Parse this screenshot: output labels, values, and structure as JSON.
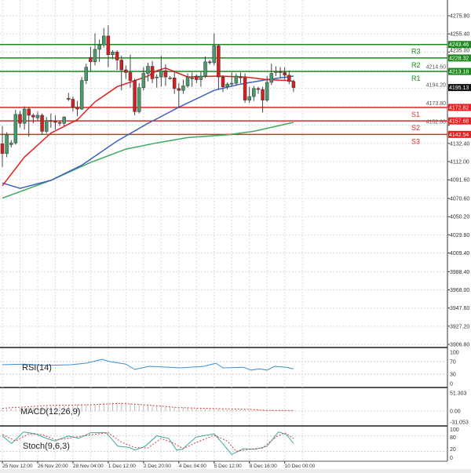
{
  "chart_data": {
    "type": "candlestick",
    "main": {
      "yticks": [
        4275.8,
        4255.4,
        4235.0,
        4132.4,
        4112.0,
        4091.6,
        4070.6,
        4050.2,
        4029.8,
        4009.4,
        3988.4,
        3968.0,
        3947.6,
        3927.2,
        3906.8
      ],
      "ytick_labels_hidden_under_boxes": [
        4214.6,
        4194.2,
        4173.8,
        4152.8
      ],
      "ylim": [
        3906.8,
        4292
      ],
      "current_price": "4195.13",
      "candles_ohlc": [
        [
          4132,
          4152,
          4106,
          4121
        ],
        [
          4121,
          4145,
          4117,
          4142
        ],
        [
          4131,
          4136,
          4128,
          4133
        ],
        [
          4133,
          4170,
          4131,
          4165
        ],
        [
          4165,
          4169,
          4150,
          4155
        ],
        [
          4155,
          4174,
          4148,
          4171
        ],
        [
          4171,
          4173,
          4140,
          4164
        ],
        [
          4164,
          4166,
          4155,
          4162
        ],
        [
          4161,
          4168,
          4158,
          4164
        ],
        [
          4164,
          4166,
          4142,
          4146
        ],
        [
          4146,
          4162,
          4144,
          4158
        ],
        [
          4158,
          4166,
          4150,
          4157
        ],
        [
          4157,
          4164,
          4148,
          4156
        ],
        [
          4156,
          4158,
          4152,
          4155
        ],
        [
          4155,
          4163,
          4152,
          4162
        ],
        [
          4183,
          4189,
          4180,
          4182
        ],
        [
          4182,
          4185,
          4168,
          4173
        ],
        [
          4173,
          4180,
          4163,
          4171
        ],
        [
          4171,
          4207,
          4170,
          4203
        ],
        [
          4203,
          4222,
          4199,
          4218
        ],
        [
          4229,
          4241,
          4213,
          4224
        ],
        [
          4224,
          4256,
          4220,
          4238
        ],
        [
          4238,
          4249,
          4224,
          4243
        ],
        [
          4243,
          4262,
          4240,
          4253
        ],
        [
          4253,
          4265,
          4218,
          4232
        ],
        [
          4232,
          4237,
          4227,
          4235
        ],
        [
          4235,
          4237,
          4215,
          4226
        ],
        [
          4226,
          4231,
          4192,
          4215
        ],
        [
          4215,
          4220,
          4205,
          4212
        ],
        [
          4212,
          4232,
          4195,
          4203
        ],
        [
          4203,
          4205,
          4164,
          4168
        ],
        [
          4168,
          4200,
          4166,
          4195
        ],
        [
          4195,
          4218,
          4192,
          4211
        ],
        [
          4211,
          4223,
          4202,
          4219
        ],
        [
          4219,
          4225,
          4200,
          4205
        ],
        [
          4206,
          4210,
          4195,
          4207
        ],
        [
          4207,
          4231,
          4196,
          4214
        ],
        [
          4214,
          4221,
          4197,
          4207
        ],
        [
          4206,
          4208,
          4204,
          4206
        ],
        [
          4206,
          4214,
          4188,
          4194
        ],
        [
          4194,
          4200,
          4172,
          4192
        ],
        [
          4192,
          4204,
          4188,
          4197
        ],
        [
          4197,
          4211,
          4195,
          4207
        ],
        [
          4205,
          4212,
          4196,
          4206
        ],
        [
          4208,
          4210,
          4200,
          4204
        ],
        [
          4204,
          4213,
          4196,
          4208
        ],
        [
          4208,
          4230,
          4206,
          4224
        ],
        [
          4224,
          4226,
          4221,
          4223
        ],
        [
          4223,
          4256,
          4220,
          4242
        ],
        [
          4242,
          4244,
          4193,
          4207
        ],
        [
          4207,
          4209,
          4190,
          4196
        ],
        [
          4196,
          4201,
          4193,
          4199
        ],
        [
          4199,
          4212,
          4196,
          4200
        ],
        [
          4200,
          4211,
          4197,
          4208
        ],
        [
          4207,
          4212,
          4200,
          4206
        ],
        [
          4206,
          4211,
          4178,
          4181
        ],
        [
          4181,
          4196,
          4178,
          4185
        ],
        [
          4185,
          4197,
          4180,
          4194
        ],
        [
          4194,
          4196,
          4188,
          4193
        ],
        [
          4193,
          4196,
          4167,
          4181
        ],
        [
          4181,
          4208,
          4179,
          4201
        ],
        [
          4201,
          4222,
          4198,
          4211
        ],
        [
          4212,
          4219,
          4208,
          4213
        ],
        [
          4213,
          4218,
          4206,
          4212
        ],
        [
          4212,
          4218,
          4204,
          4209
        ],
        [
          4209,
          4214,
          4199,
          4202
        ],
        [
          4202,
          4204,
          4190,
          4195.13
        ]
      ],
      "moving_averages": [
        {
          "color": "#e02020",
          "points": [
            [
              0,
              4085
            ],
            [
              5,
              4117
            ],
            [
              11,
              4144
            ],
            [
              17,
              4159
            ],
            [
              21,
              4179
            ],
            [
              26,
              4196
            ],
            [
              33,
              4208
            ],
            [
              35,
              4214
            ],
            [
              37,
              4217
            ],
            [
              42,
              4207
            ],
            [
              49,
              4208
            ],
            [
              55,
              4207
            ],
            [
              60,
              4204
            ],
            [
              65,
              4203
            ],
            [
              66,
              4202
            ]
          ]
        },
        {
          "color": "#4060c8",
          "points": [
            [
              0,
              4088
            ],
            [
              4,
              4082
            ],
            [
              11,
              4091
            ],
            [
              18,
              4108
            ],
            [
              26,
              4135
            ],
            [
              33,
              4155
            ],
            [
              35,
              4160
            ],
            [
              40,
              4173
            ],
            [
              48,
              4192
            ],
            [
              54,
              4199
            ],
            [
              60,
              4204
            ],
            [
              66,
              4208
            ]
          ]
        },
        {
          "color": "#40a860",
          "points": [
            [
              0,
              4071
            ],
            [
              11,
              4091
            ],
            [
              20,
              4111
            ],
            [
              28,
              4126
            ],
            [
              35,
              4133
            ],
            [
              42,
              4139
            ],
            [
              51,
              4142
            ],
            [
              57,
              4146
            ],
            [
              66,
              4156
            ]
          ]
        }
      ],
      "pivots": [
        {
          "name": "R3",
          "value": "4243.46",
          "color": "#1e8a1e"
        },
        {
          "name": "R2",
          "value": "4228.32",
          "color": "#1e8a1e"
        },
        {
          "name": "R1",
          "value": "4213.18",
          "color": "#1e8a1e"
        },
        {
          "name": "S1",
          "value": "4172.82",
          "color": "#e02828"
        },
        {
          "name": "S2",
          "value": "4157.68",
          "color": "#e02828"
        },
        {
          "name": "S3",
          "value": "4142.54",
          "color": "#e02828"
        }
      ],
      "up_color": "#4a9a6a",
      "down_color": "#d02020"
    },
    "rsi": {
      "label": "RSI(14)",
      "yticks": [
        "100",
        "70",
        "30",
        "0"
      ],
      "ylim": [
        0,
        100
      ],
      "color": "#3b8fd0",
      "points": [
        [
          0,
          60
        ],
        [
          4.8,
          62
        ],
        [
          10,
          58
        ],
        [
          15.5,
          60
        ],
        [
          19,
          65
        ],
        [
          22.6,
          77
        ],
        [
          24.4,
          70
        ],
        [
          28,
          62
        ],
        [
          30,
          45
        ],
        [
          33.3,
          55
        ],
        [
          40.4,
          50
        ],
        [
          45.7,
          55
        ],
        [
          48.4,
          65
        ],
        [
          50,
          50
        ],
        [
          54.6,
          52
        ],
        [
          56.4,
          43
        ],
        [
          58.2,
          47
        ],
        [
          60,
          43
        ],
        [
          61.7,
          55
        ],
        [
          64.4,
          52
        ],
        [
          66,
          47
        ]
      ]
    },
    "macd": {
      "label": "MACD(12,26,9)",
      "yticks": [
        "51.303",
        "0.00",
        "-31.053"
      ],
      "ylim": [
        -31.053,
        51.303
      ],
      "histogram": [
        [
          0,
          5
        ],
        [
          10,
          14
        ],
        [
          20,
          20
        ],
        [
          26,
          25
        ],
        [
          33,
          18
        ],
        [
          40,
          10
        ],
        [
          48,
          6
        ],
        [
          56,
          4
        ],
        [
          66,
          2
        ]
      ],
      "signal": [
        [
          0,
          8
        ],
        [
          10,
          16
        ],
        [
          20,
          18
        ],
        [
          27,
          22
        ],
        [
          33,
          17
        ],
        [
          40,
          10
        ],
        [
          48,
          7
        ],
        [
          56,
          5
        ],
        [
          60,
          2
        ],
        [
          66,
          2
        ]
      ]
    },
    "stoch": {
      "label": "Stoch(9,6,3)",
      "yticks": [
        "100",
        "80",
        "20",
        "0"
      ],
      "ylim": [
        0,
        100
      ],
      "main": [
        [
          0,
          80
        ],
        [
          2.1,
          50
        ],
        [
          4.8,
          95
        ],
        [
          7.5,
          88
        ],
        [
          10,
          70
        ],
        [
          11.9,
          60
        ],
        [
          15,
          80
        ],
        [
          17.3,
          70
        ],
        [
          20,
          92
        ],
        [
          23.5,
          92
        ],
        [
          26.2,
          40
        ],
        [
          28.8,
          35
        ],
        [
          30,
          25
        ],
        [
          32.4,
          40
        ],
        [
          35,
          80
        ],
        [
          37.7,
          70
        ],
        [
          39.5,
          25
        ],
        [
          40.8,
          28
        ],
        [
          43.9,
          75
        ],
        [
          48,
          88
        ],
        [
          50.2,
          45
        ],
        [
          52,
          8
        ],
        [
          54.6,
          30
        ],
        [
          57.3,
          28
        ],
        [
          60,
          40
        ],
        [
          62.6,
          95
        ],
        [
          64.4,
          85
        ],
        [
          66,
          50
        ]
      ],
      "signal": [
        [
          0,
          85
        ],
        [
          3,
          60
        ],
        [
          6,
          88
        ],
        [
          9,
          85
        ],
        [
          12,
          65
        ],
        [
          14,
          68
        ],
        [
          17,
          76
        ],
        [
          20,
          84
        ],
        [
          24,
          92
        ],
        [
          27,
          55
        ],
        [
          30,
          35
        ],
        [
          33,
          33
        ],
        [
          36,
          70
        ],
        [
          39,
          50
        ],
        [
          41,
          30
        ],
        [
          44,
          55
        ],
        [
          48,
          82
        ],
        [
          51,
          60
        ],
        [
          53,
          20
        ],
        [
          56,
          28
        ],
        [
          59,
          33
        ],
        [
          62,
          75
        ],
        [
          64,
          92
        ],
        [
          66,
          70
        ]
      ]
    },
    "x_labels": [
      {
        "candle": 0,
        "text": "25 Nov 12:00"
      },
      {
        "candle": 8,
        "text": "26 Nov 20:00"
      },
      {
        "candle": 16,
        "text": "28 Nov 04:00"
      },
      {
        "candle": 24,
        "text": "1 Dec 12:00"
      },
      {
        "candle": 32,
        "text": "2 Dec 20:00"
      },
      {
        "candle": 40,
        "text": "4 Dec 04:00"
      },
      {
        "candle": 48,
        "text": "5 Dec 12:00"
      },
      {
        "candle": 56,
        "text": "8 Dec 16:00"
      },
      {
        "candle": 64,
        "text": "10 Dec 00:00"
      }
    ]
  }
}
